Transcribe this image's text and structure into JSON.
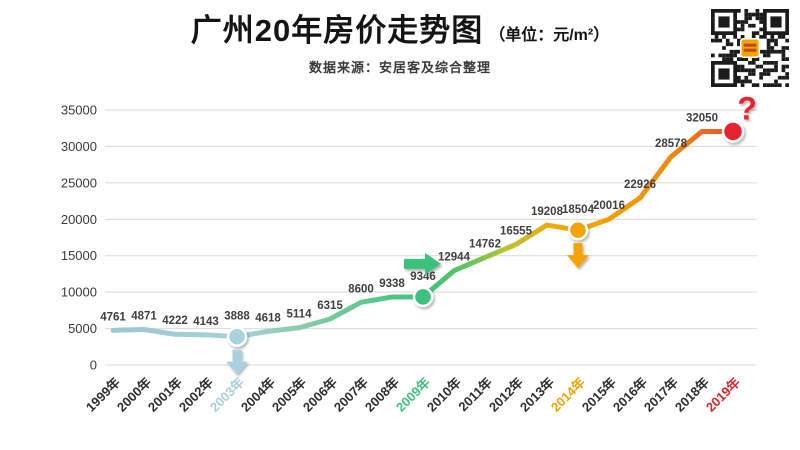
{
  "header": {
    "title": "广州20年房价走势图",
    "title_unit": "（单位：元/m²）",
    "subtitle": "数据来源：安居客及综合整理"
  },
  "colors": {
    "grid": "#d9d9d9",
    "axis_text": "#3a3a3a",
    "label_text": "#3f3f3f",
    "title": "#141414",
    "qr_dark": "#1b1b1b",
    "qr_logo": "#f5a302"
  },
  "chart_data": {
    "type": "line",
    "title": "广州20年房价走势图（单位：元/m²）",
    "xlabel": "",
    "ylabel": "元/m²",
    "ylim": [
      0,
      35000
    ],
    "y_ticks": [
      0,
      5000,
      10000,
      15000,
      20000,
      25000,
      30000,
      35000
    ],
    "grid": true,
    "legend": "none",
    "categories": [
      "1999年",
      "2000年",
      "2001年",
      "2002年",
      "2003年",
      "2004年",
      "2005年",
      "2006年",
      "2007年",
      "2008年",
      "2009年",
      "2010年",
      "2011年",
      "2012年",
      "2013年",
      "2014年",
      "2015年",
      "2016年",
      "2017年",
      "2018年",
      "2019年"
    ],
    "values": [
      4761,
      4871,
      4222,
      4143,
      3888,
      4618,
      5114,
      6315,
      8600,
      9338,
      9346,
      12944,
      14762,
      16555,
      19208,
      18504,
      20016,
      22926,
      28578,
      32050,
      32050
    ],
    "point_labels": [
      "4761",
      "4871",
      "4222",
      "4143",
      "3888",
      "4618",
      "5114",
      "6315",
      "8600",
      "9338",
      "9346",
      "12944",
      "14762",
      "16555",
      "19208",
      "18504",
      "20016",
      "22926",
      "28578",
      "32050",
      ""
    ],
    "last_point_label": "?",
    "default_tick_color": "#2e2e2e",
    "x_tick_colors": {
      "2003年": "#a9cfdb",
      "2009年": "#3ec27e",
      "2014年": "#f0a202",
      "2019年": "#e0232b"
    },
    "line_gradient": [
      {
        "offset": 0,
        "color": "#9cc7ce"
      },
      {
        "offset": 0.2,
        "color": "#a8d2dc"
      },
      {
        "offset": 0.33,
        "color": "#7ccb9f"
      },
      {
        "offset": 0.5,
        "color": "#3ec27e"
      },
      {
        "offset": 0.57,
        "color": "#5ec45f"
      },
      {
        "offset": 0.63,
        "color": "#b3c437"
      },
      {
        "offset": 0.7,
        "color": "#eeaa0e"
      },
      {
        "offset": 0.78,
        "color": "#f5a302"
      },
      {
        "offset": 0.9,
        "color": "#f08a10"
      },
      {
        "offset": 1,
        "color": "#e7512a"
      }
    ],
    "annotations": [
      {
        "category": "2003年",
        "marker": "circle",
        "arrow": "down",
        "color": "#aad2de"
      },
      {
        "category": "2009年",
        "marker": "circle",
        "arrow": "right",
        "color": "#3ec27e"
      },
      {
        "category": "2014年",
        "marker": "circle",
        "arrow": "down",
        "color": "#f5a302"
      },
      {
        "category": "2019年",
        "marker": "circle",
        "symbol": "?",
        "color": "#e8212e"
      }
    ]
  }
}
